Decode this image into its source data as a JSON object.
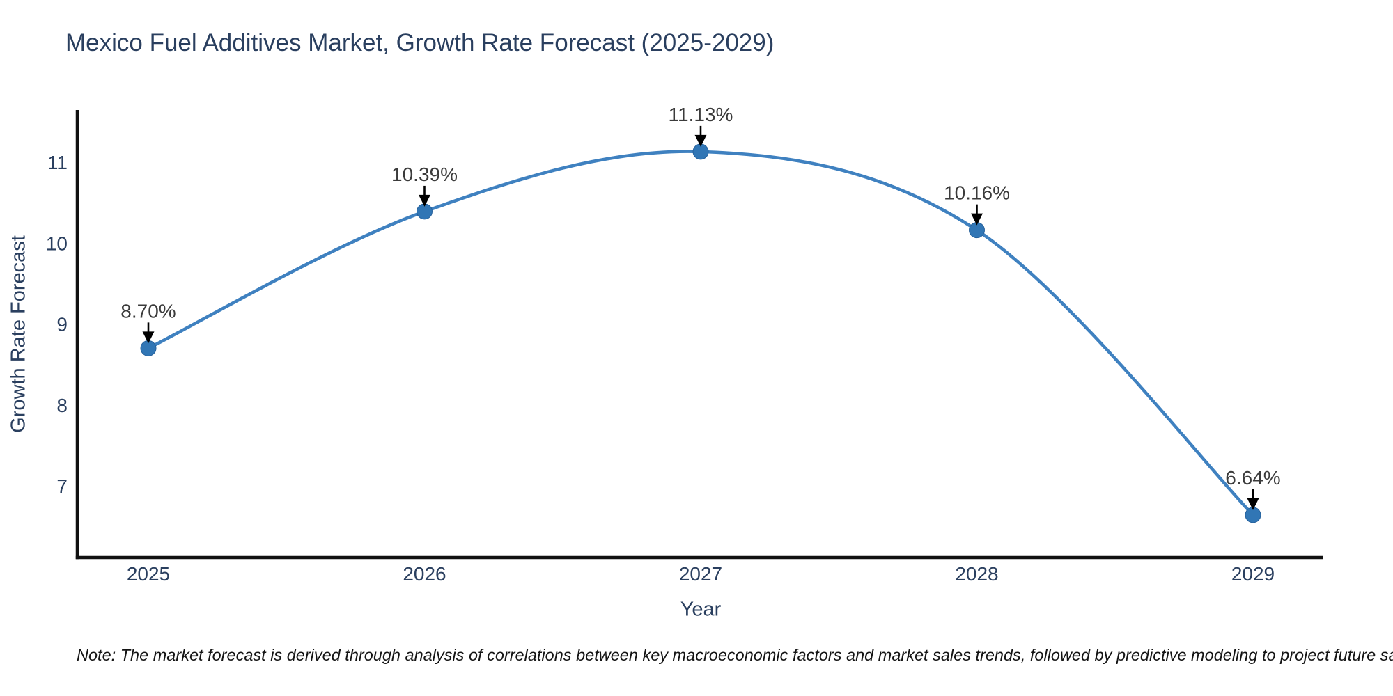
{
  "title": "Mexico Fuel Additives Market, Growth Rate Forecast (2025-2029)",
  "note": "Note: The market forecast is derived through analysis of correlations between key macroeconomic factors and market sales trends, followed by predictive modeling to project future sales",
  "chart_data": {
    "type": "line",
    "title": "Mexico Fuel Additives Market, Growth Rate Forecast (2025-2029)",
    "xlabel": "Year",
    "ylabel": "Growth Rate Forecast",
    "x": [
      2025,
      2026,
      2027,
      2028,
      2029
    ],
    "values": [
      8.7,
      10.39,
      11.13,
      10.16,
      6.64
    ],
    "point_labels": [
      "8.70%",
      "10.39%",
      "11.13%",
      "10.16%",
      "6.64%"
    ],
    "yticks": [
      7,
      8,
      9,
      10,
      11
    ],
    "ylim": [
      6.1,
      11.65
    ],
    "line_shape": "spline",
    "grid": false,
    "legend": "none",
    "markers": true,
    "annotation_arrows": true,
    "colors": {
      "line": "#3f81c0",
      "marker": "#3176b5",
      "marker_edge": "#26619c",
      "axis": "#111111",
      "tick_text": "#2a3f5f",
      "annotation_text": "#3b3b3b",
      "arrow": "#000000",
      "background": "#ffffff"
    }
  }
}
